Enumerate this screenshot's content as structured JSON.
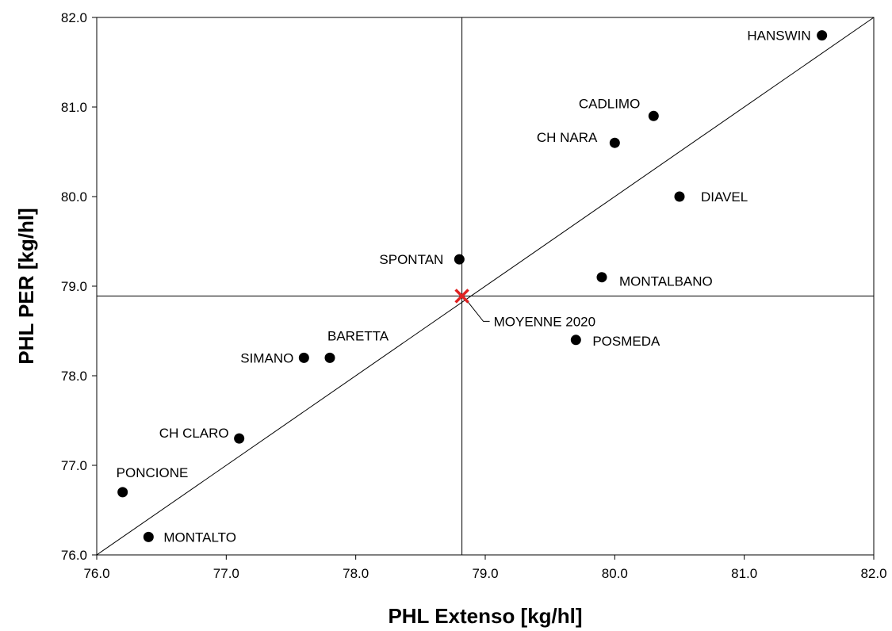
{
  "chart_data": {
    "type": "scatter",
    "title": "",
    "xlabel": "PHL Extenso [kg/hl]",
    "ylabel": "PHL PER [kg/hl]",
    "xlim": [
      76.0,
      82.0
    ],
    "ylim": [
      76.0,
      82.0
    ],
    "x_ticks": [
      "76.0",
      "77.0",
      "78.0",
      "79.0",
      "80.0",
      "81.0",
      "82.0"
    ],
    "y_ticks": [
      "76.0",
      "77.0",
      "78.0",
      "79.0",
      "80.0",
      "81.0",
      "82.0"
    ],
    "grid": false,
    "diagonal_line": true,
    "reference_lines": {
      "x": 78.82,
      "y": 78.89
    },
    "marker_color": "#000000",
    "average_color": "#e02020",
    "points": [
      {
        "label": "HANSWIN",
        "x": 81.6,
        "y": 81.8
      },
      {
        "label": "CADLIMO",
        "x": 80.3,
        "y": 80.9
      },
      {
        "label": "CH NARA",
        "x": 80.0,
        "y": 80.6
      },
      {
        "label": "DIAVEL",
        "x": 80.5,
        "y": 80.0
      },
      {
        "label": "SPONTAN",
        "x": 78.8,
        "y": 79.3
      },
      {
        "label": "MONTALBANO",
        "x": 79.9,
        "y": 79.1
      },
      {
        "label": "POSMEDA",
        "x": 79.7,
        "y": 78.4
      },
      {
        "label": "BARETTA",
        "x": 77.8,
        "y": 78.2
      },
      {
        "label": "SIMANO",
        "x": 77.6,
        "y": 78.2
      },
      {
        "label": "CH CLARO",
        "x": 77.1,
        "y": 77.3
      },
      {
        "label": "PONCIONE",
        "x": 76.2,
        "y": 76.7
      },
      {
        "label": "MONTALTO",
        "x": 76.4,
        "y": 76.2
      }
    ],
    "average": {
      "label": "MOYENNE 2020",
      "x": 78.82,
      "y": 78.89
    }
  }
}
